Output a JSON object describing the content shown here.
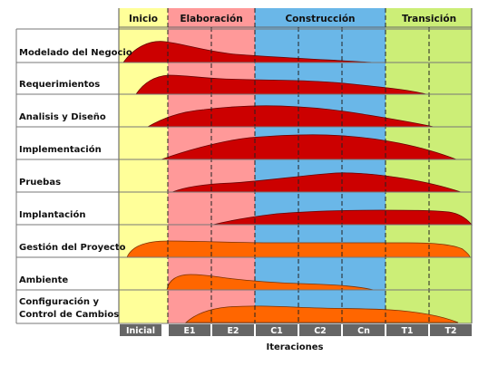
{
  "phases": [
    {
      "label": "Inicio",
      "color": "#ffff99"
    },
    {
      "label": "Elaboración",
      "color": "#ff9999"
    },
    {
      "label": "Construcción",
      "color": "#66b3e6"
    },
    {
      "label": "Transición",
      "color": "#ccee77"
    }
  ],
  "iterations": [
    "Inicial",
    "E1",
    "E2",
    "C1",
    "C2",
    "Cn",
    "T1",
    "T2"
  ],
  "x_axis_label": "Iteraciones",
  "disciplines": [
    {
      "label": "Modelado del Negocio",
      "color": "#cc0000"
    },
    {
      "label": "Requerimientos",
      "color": "#cc0000"
    },
    {
      "label": "Analisis y Diseño",
      "color": "#cc0000"
    },
    {
      "label": "Implementación",
      "color": "#cc0000"
    },
    {
      "label": "Pruebas",
      "color": "#cc0000"
    },
    {
      "label": "Implantación",
      "color": "#cc0000"
    },
    {
      "label": "Gestión del Proyecto",
      "color": "#ff6600"
    },
    {
      "label": "Ambiente",
      "color": "#ff6600"
    },
    {
      "label": "Configuración y\nControl de Cambios",
      "color": "#ff6600"
    }
  ]
}
